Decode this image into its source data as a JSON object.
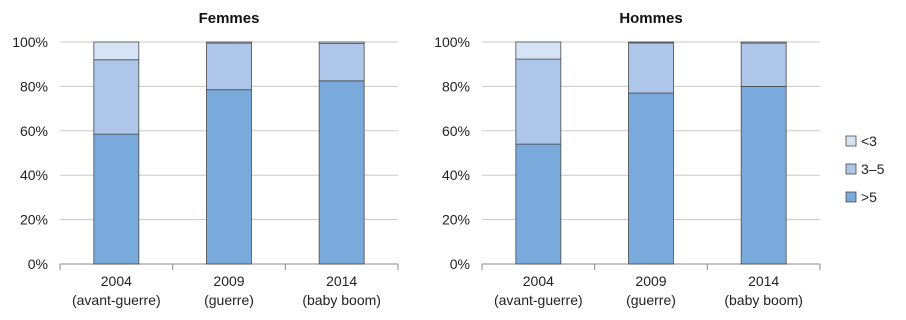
{
  "chart_data": [
    {
      "type": "bar",
      "stacked": true,
      "title": "Femmes",
      "categories": [
        [
          "2004",
          "(avant-guerre)"
        ],
        [
          "2009",
          "(guerre)"
        ],
        [
          "2014",
          "(baby boom)"
        ]
      ],
      "series": [
        {
          "name": ">5",
          "values": [
            58.5,
            78.5,
            82.5
          ]
        },
        {
          "name": "3–5",
          "values": [
            33.5,
            21.0,
            16.8
          ]
        },
        {
          "name": "<3",
          "values": [
            8.0,
            0.5,
            0.7
          ]
        }
      ],
      "ylim": [
        0,
        100
      ],
      "yticks": [
        "0%",
        "20%",
        "40%",
        "60%",
        "80%",
        "100%"
      ],
      "grid": true
    },
    {
      "type": "bar",
      "stacked": true,
      "title": "Hommes",
      "categories": [
        [
          "2004",
          "(avant-guerre)"
        ],
        [
          "2009",
          "(guerre)"
        ],
        [
          "2014",
          "(baby boom)"
        ]
      ],
      "series": [
        {
          "name": ">5",
          "values": [
            54.0,
            77.0,
            80.0
          ]
        },
        {
          "name": "3–5",
          "values": [
            38.3,
            22.6,
            19.5
          ]
        },
        {
          "name": "<3",
          "values": [
            7.7,
            0.4,
            0.5
          ]
        }
      ],
      "ylim": [
        0,
        100
      ],
      "yticks": [
        "0%",
        "20%",
        "40%",
        "60%",
        "80%",
        "100%"
      ],
      "grid": true
    }
  ],
  "legend": {
    "placement": "right",
    "entries": [
      {
        "label": "<3",
        "color": "#d6e3f5"
      },
      {
        "label": "3–5",
        "color": "#adc6e9"
      },
      {
        "label": ">5",
        "color": "#7aaadc"
      }
    ]
  },
  "colors": {
    ">5": "#7aaadc",
    "3–5": "#adc6e9",
    "<3": "#d6e3f5",
    "bar_stroke": "#4a4a4a",
    "grid": "#c8c8c8",
    "axis": "#888888"
  }
}
